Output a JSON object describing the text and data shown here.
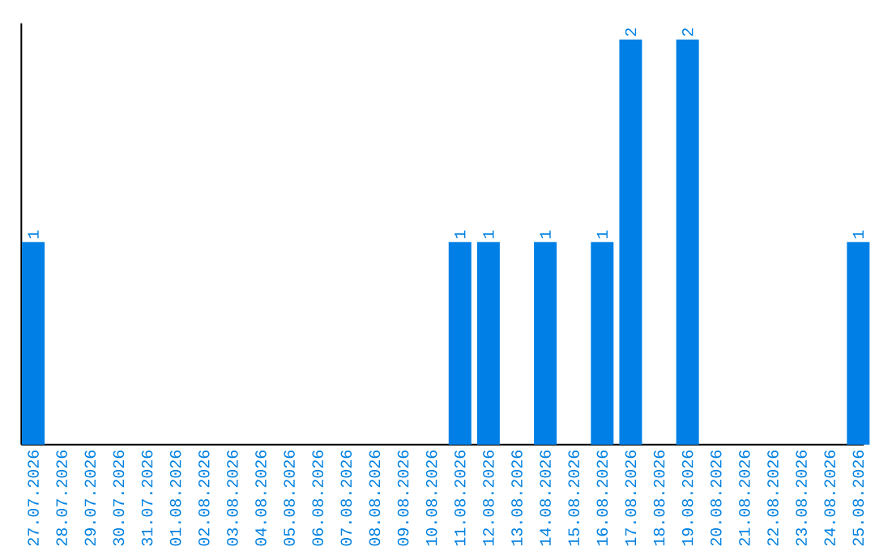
{
  "chart_data": {
    "type": "bar",
    "categories": [
      "27.07.2026",
      "28.07.2026",
      "29.07.2026",
      "30.07.2026",
      "31.07.2026",
      "01.08.2026",
      "02.08.2026",
      "03.08.2026",
      "04.08.2026",
      "05.08.2026",
      "06.08.2026",
      "07.08.2026",
      "08.08.2026",
      "09.08.2026",
      "10.08.2026",
      "11.08.2026",
      "12.08.2026",
      "13.08.2026",
      "14.08.2026",
      "15.08.2026",
      "16.08.2026",
      "17.08.2026",
      "18.08.2026",
      "19.08.2026",
      "20.08.2026",
      "21.08.2026",
      "22.08.2026",
      "23.08.2026",
      "24.08.2026",
      "25.08.2026"
    ],
    "values": [
      1,
      0,
      0,
      0,
      0,
      0,
      0,
      0,
      0,
      0,
      0,
      0,
      0,
      0,
      0,
      1,
      1,
      0,
      1,
      0,
      1,
      2,
      0,
      2,
      0,
      0,
      0,
      0,
      0,
      1
    ],
    "value_labels": [
      "1",
      null,
      null,
      null,
      null,
      null,
      null,
      null,
      null,
      null,
      null,
      null,
      null,
      null,
      null,
      "1",
      "1",
      null,
      "1",
      null,
      "1",
      "2",
      null,
      "2",
      null,
      null,
      null,
      null,
      null,
      "1"
    ],
    "color": "#0080e6"
  }
}
